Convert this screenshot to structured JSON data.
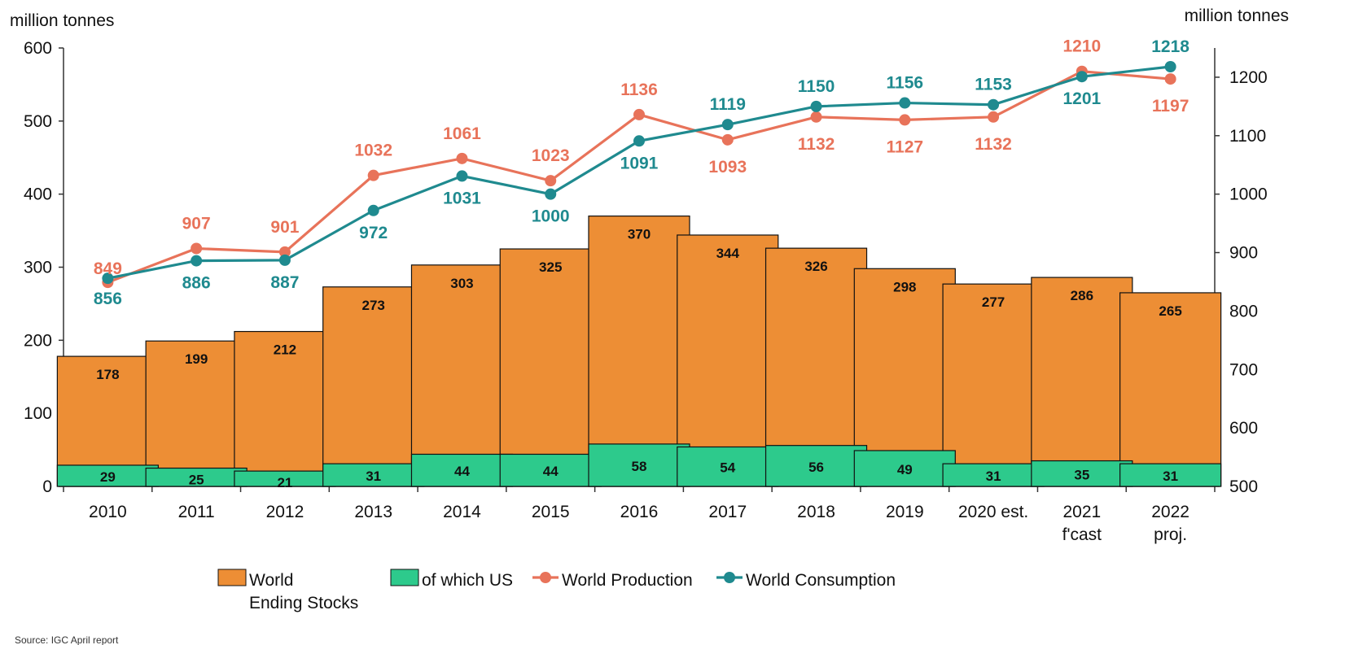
{
  "chart_data": {
    "type": "bar",
    "categories": [
      "2010",
      "2011",
      "2012",
      "2013",
      "2014",
      "2015",
      "2016",
      "2017",
      "2018",
      "2019",
      "2020 est.",
      "2021\nf'cast",
      "2022\nproj."
    ],
    "series": [
      {
        "name": "World Ending Stocks",
        "kind": "bar",
        "axis": "left",
        "color": "#ED8E35",
        "values": [
          178,
          199,
          212,
          273,
          303,
          325,
          370,
          344,
          326,
          298,
          277,
          286,
          265
        ]
      },
      {
        "name": "of which US",
        "kind": "bar",
        "axis": "left",
        "color": "#2DCA8C",
        "values": [
          29,
          25,
          21,
          31,
          44,
          44,
          58,
          54,
          56,
          49,
          31,
          35,
          31
        ]
      },
      {
        "name": "World Production",
        "kind": "line",
        "axis": "right",
        "color": "#E8735A",
        "values": [
          849,
          907,
          901,
          1032,
          1061,
          1023,
          1136,
          1093,
          1132,
          1127,
          1132,
          1210,
          1197
        ]
      },
      {
        "name": "World Consumption",
        "kind": "line",
        "axis": "right",
        "color": "#1F8A8F",
        "values": [
          856,
          886,
          887,
          972,
          1031,
          1000,
          1091,
          1119,
          1150,
          1156,
          1153,
          1201,
          1218
        ]
      }
    ],
    "left_axis": {
      "label": "million tonnes",
      "range": [
        0,
        600
      ],
      "ticks": [
        0,
        100,
        200,
        300,
        400,
        500,
        600
      ]
    },
    "right_axis": {
      "label": "million tonnes",
      "range": [
        500,
        1250
      ],
      "ticks": [
        500,
        600,
        700,
        800,
        900,
        1000,
        1100,
        1200
      ]
    },
    "legend": {
      "placement": "bottom",
      "items": [
        {
          "label": "World\nEnding Stocks",
          "type": "box",
          "color": "#ED8E35"
        },
        {
          "label": "of which US",
          "type": "box",
          "color": "#2DCA8C"
        },
        {
          "label": "World Production",
          "type": "line",
          "color": "#E8735A"
        },
        {
          "label": "World Consumption",
          "type": "line",
          "color": "#1F8A8F"
        }
      ]
    },
    "grid": false
  },
  "source_note": "Source: IGC April report"
}
